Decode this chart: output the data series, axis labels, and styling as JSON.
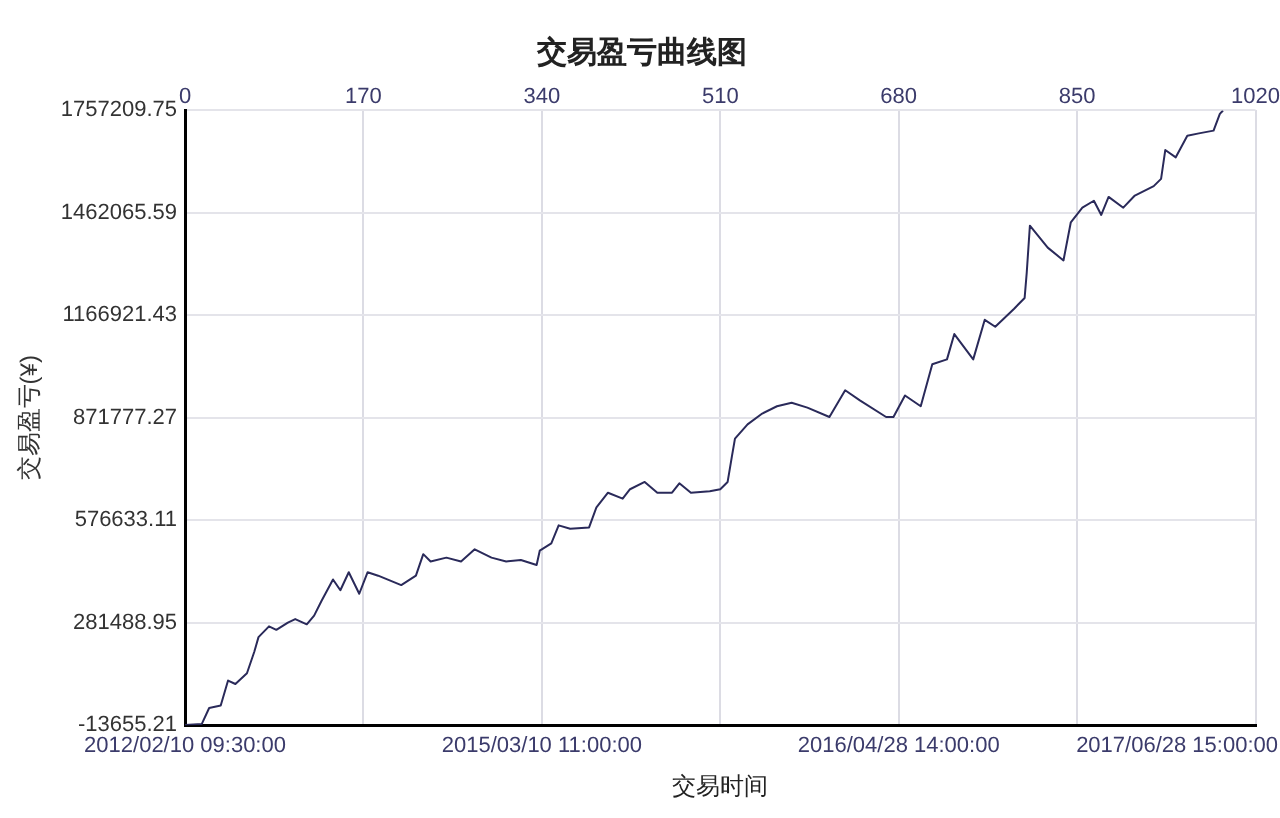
{
  "chart_data": {
    "type": "line",
    "title": "交易盈亏曲线图",
    "xlabel": "交易时间",
    "ylabel": "交易盈亏(¥)",
    "xlim": [
      0,
      1020
    ],
    "xticks": [
      0,
      170,
      340,
      510,
      680,
      850,
      1020
    ],
    "annotations": [
      "2012/02/10 09:30:00",
      "2015/03/10 11:00:00",
      "2016/04/28 14:00:00",
      "2017/06/28 15:00:00"
    ],
    "ylim": [
      -13655.21,
      1757209.75
    ],
    "yticks": [
      -13655.21,
      281488.95,
      576633.11,
      871777.27,
      1166921.43,
      1462065.59,
      1757209.75
    ],
    "grid": true,
    "legend": false,
    "marker": "none",
    "line_style": "solid",
    "series": [
      {
        "color": "#2a2a5a",
        "x": [
          0,
          16,
          23,
          34,
          41,
          48,
          59,
          66,
          70,
          80,
          87,
          98,
          105,
          116,
          123,
          130,
          141,
          148,
          156,
          166,
          174,
          184,
          206,
          220,
          227,
          234,
          249,
          263,
          276,
          292,
          306,
          320,
          335,
          338,
          349,
          356,
          367,
          385,
          392,
          403,
          417,
          424,
          438,
          450,
          464,
          471,
          482,
          500,
          510,
          517,
          521,
          524,
          536,
          550,
          564,
          578,
          593,
          614,
          629,
          643,
          668,
          675,
          686,
          701,
          712,
          726,
          733,
          751,
          762,
          772,
          790,
          800,
          802,
          805,
          822,
          837,
          844,
          855,
          866,
          873,
          880,
          894,
          905,
          923,
          930,
          934,
          944,
          955,
          966,
          980,
          986,
          989
        ],
        "values": [
          -13000,
          -10000,
          36000,
          43000,
          115000,
          105000,
          136000,
          198000,
          240000,
          271000,
          261000,
          282000,
          292000,
          277000,
          302000,
          344000,
          406000,
          375000,
          427000,
          365000,
          427000,
          417000,
          390000,
          417000,
          479000,
          458000,
          469000,
          458000,
          493000,
          469000,
          458000,
          462000,
          448000,
          489000,
          510000,
          562000,
          552000,
          556000,
          614000,
          656000,
          639000,
          666000,
          687000,
          656000,
          656000,
          683000,
          656000,
          660000,
          666000,
          687000,
          759000,
          812000,
          853000,
          884000,
          905000,
          915000,
          901000,
          874000,
          951000,
          922000,
          874000,
          874000,
          936000,
          905000,
          1026000,
          1040000,
          1113000,
          1040000,
          1154000,
          1134000,
          1186000,
          1217000,
          1290000,
          1425000,
          1362000,
          1325000,
          1435000,
          1477000,
          1497000,
          1456000,
          1508000,
          1477000,
          1512000,
          1539000,
          1560000,
          1643000,
          1622000,
          1684000,
          1691000,
          1699000,
          1747000,
          1757000
        ]
      }
    ]
  }
}
